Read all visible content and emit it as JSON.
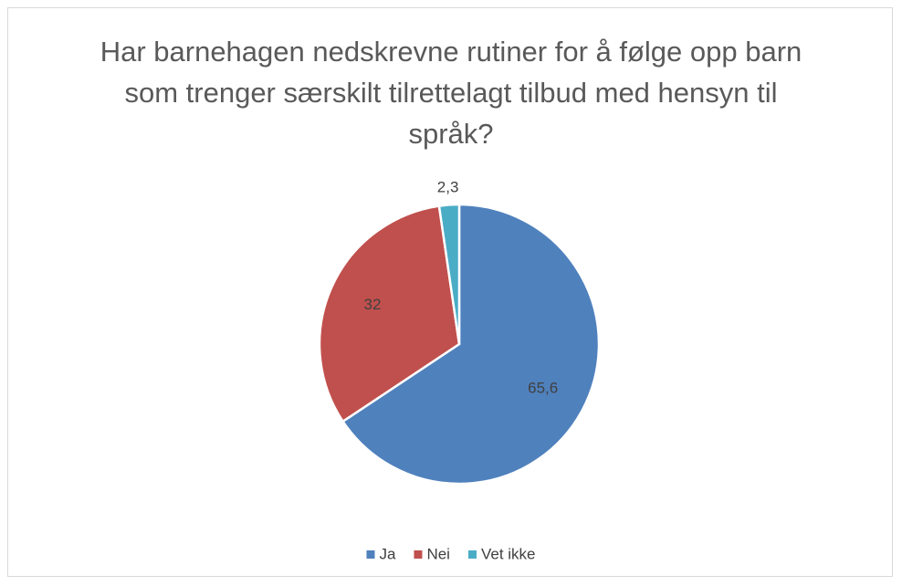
{
  "chart_data": {
    "type": "pie",
    "title": "Har barnehagen nedskrevne rutiner for å følge opp barn som trenger særskilt tilrettelagt tilbud med hensyn til språk?",
    "categories": [
      "Ja",
      "Nei",
      "Vet ikke"
    ],
    "values": [
      65.6,
      32,
      2.3
    ],
    "value_labels": [
      "65,6",
      "32",
      "2,3"
    ],
    "colors": [
      "#4f81bd",
      "#c0504d",
      "#4bacc6"
    ],
    "legend": "bottom"
  }
}
